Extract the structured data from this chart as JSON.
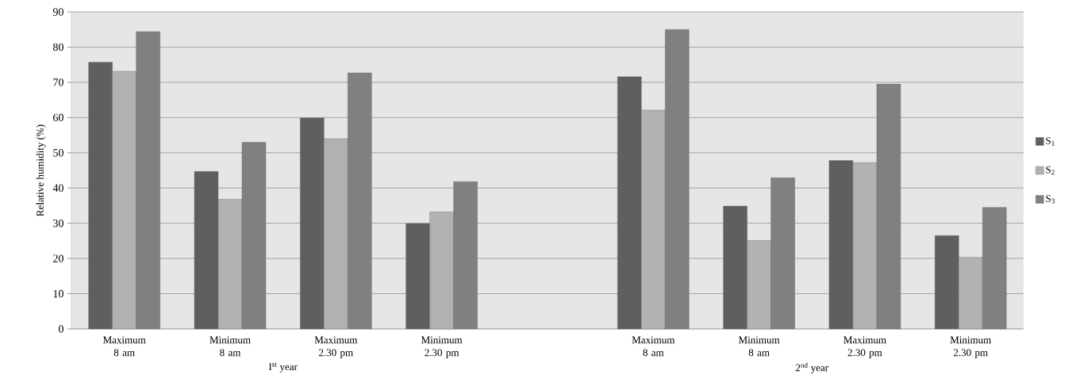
{
  "chart_data": {
    "type": "bar",
    "ylabel": "Relative humidity (%)",
    "categories": [
      "Maximum 8 am",
      "Minimum 8 am",
      "Maximum 2.30 pm",
      "Minimum 2.30 pm",
      null,
      "Maximum 8 am",
      "Minimum 8 am",
      "Maximum 2.30 pm",
      "Minimum 2.30 pm"
    ],
    "series": [
      {
        "name": "S$_{1}$",
        "color": "#5f5f5f",
        "values": [
          75.7,
          44.7,
          59.9,
          29.9,
          null,
          71.6,
          34.9,
          47.8,
          26.5
        ]
      },
      {
        "name": "S$_{2}$",
        "color": "#b2b2b2",
        "values": [
          73.1,
          36.8,
          54.0,
          33.2,
          null,
          62.1,
          25.1,
          47.2,
          20.3
        ]
      },
      {
        "name": "S$_{3}$",
        "color": "#808080",
        "values": [
          84.4,
          53.0,
          72.7,
          41.8,
          null,
          85.0,
          42.9,
          69.5,
          34.5
        ]
      }
    ],
    "annotations": [
      "I$^{st}$ year",
      "2$^{nd}$ year"
    ],
    "ylim": [
      0,
      90
    ],
    "yticks": [
      0,
      10,
      20,
      30,
      40,
      50,
      60,
      70,
      80,
      90
    ],
    "grid": "y",
    "legend": "right"
  }
}
